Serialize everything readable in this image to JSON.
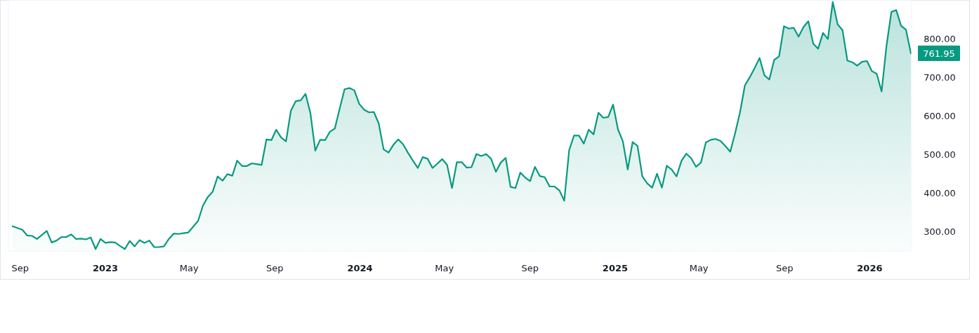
{
  "chart_data": {
    "type": "area",
    "x": [
      "2022-08-21",
      "2022-09-04",
      "2022-09-11",
      "2022-09-18",
      "2022-09-25",
      "2022-10-09",
      "2022-10-16",
      "2022-10-23",
      "2022-10-30",
      "2022-11-06",
      "2022-11-13",
      "2022-11-20",
      "2022-11-27",
      "2022-12-04",
      "2022-12-11",
      "2022-12-18",
      "2022-12-25",
      "2023-01-01",
      "2023-01-08",
      "2023-01-15",
      "2023-01-22",
      "2023-01-29",
      "2023-02-05",
      "2023-02-12",
      "2023-02-19",
      "2023-02-26",
      "2023-03-05",
      "2023-03-12",
      "2023-03-19",
      "2023-03-26",
      "2023-04-02",
      "2023-04-09",
      "2023-04-16",
      "2023-04-23",
      "2023-04-30",
      "2023-05-07",
      "2023-05-14",
      "2023-05-21",
      "2023-05-28",
      "2023-06-04",
      "2023-06-11",
      "2023-06-18",
      "2023-06-25",
      "2023-07-02",
      "2023-07-09",
      "2023-07-16",
      "2023-07-23",
      "2023-07-30",
      "2023-08-06",
      "2023-08-13",
      "2023-08-20",
      "2023-08-27",
      "2023-09-03",
      "2023-09-10",
      "2023-09-17",
      "2023-09-24",
      "2023-10-01",
      "2023-10-08",
      "2023-10-15",
      "2023-10-22",
      "2023-10-29",
      "2023-11-05",
      "2023-11-12",
      "2023-11-19",
      "2023-11-26",
      "2023-12-03",
      "2023-12-10",
      "2023-12-17",
      "2023-12-24",
      "2023-12-31",
      "2024-01-07",
      "2024-01-14",
      "2024-01-21",
      "2024-01-28",
      "2024-02-04",
      "2024-02-11",
      "2024-02-18",
      "2024-02-25",
      "2024-03-03",
      "2024-03-10",
      "2024-03-17",
      "2024-03-24",
      "2024-03-31",
      "2024-04-07",
      "2024-04-14",
      "2024-04-21",
      "2024-04-28",
      "2024-05-05",
      "2024-05-12",
      "2024-05-19",
      "2024-05-26",
      "2024-06-02",
      "2024-06-09",
      "2024-06-16",
      "2024-06-23",
      "2024-06-30",
      "2024-07-07",
      "2024-07-14",
      "2024-07-21",
      "2024-07-28",
      "2024-08-04",
      "2024-08-11",
      "2024-08-18",
      "2024-08-25",
      "2024-09-01",
      "2024-09-08",
      "2024-09-15",
      "2024-09-22",
      "2024-09-29",
      "2024-10-06",
      "2024-10-13",
      "2024-10-20",
      "2024-10-27",
      "2024-11-03",
      "2024-11-10",
      "2024-11-17",
      "2024-11-24",
      "2024-12-01",
      "2024-12-08",
      "2024-12-15",
      "2024-12-22",
      "2024-12-29",
      "2025-01-05",
      "2025-01-12",
      "2025-01-19",
      "2025-01-26",
      "2025-02-02",
      "2025-02-09",
      "2025-02-16",
      "2025-02-23",
      "2025-03-02",
      "2025-03-09",
      "2025-03-16",
      "2025-03-23",
      "2025-03-30",
      "2025-04-06",
      "2025-04-13",
      "2025-04-20",
      "2025-04-27",
      "2025-05-04",
      "2025-05-11",
      "2025-05-18",
      "2025-05-25",
      "2025-06-01",
      "2025-06-08",
      "2025-06-15",
      "2025-06-22",
      "2025-06-29",
      "2025-07-06",
      "2025-07-13",
      "2025-07-20",
      "2025-07-27",
      "2025-08-03",
      "2025-08-10",
      "2025-08-17",
      "2025-08-24",
      "2025-08-31",
      "2025-09-07",
      "2025-09-14",
      "2025-09-21",
      "2025-09-28",
      "2025-10-05",
      "2025-10-12",
      "2025-10-19",
      "2025-10-26",
      "2025-11-02",
      "2025-11-09",
      "2025-11-16",
      "2025-11-23",
      "2025-11-30",
      "2025-12-07",
      "2025-12-14",
      "2025-12-21",
      "2025-12-28",
      "2026-01-04",
      "2026-01-11",
      "2026-01-18",
      "2026-01-25",
      "2026-02-01",
      "2026-02-08",
      "2026-02-15",
      "2026-02-22",
      "2026-03-01"
    ],
    "series": [
      {
        "color": "#089981",
        "values": [
          314,
          305,
          290,
          289,
          281,
          302,
          272,
          277,
          286,
          286,
          293,
          281,
          282,
          280,
          285,
          255,
          281,
          271,
          273,
          272,
          263,
          255,
          276,
          262,
          278,
          271,
          277,
          260,
          260,
          262,
          281,
          295,
          294,
          296,
          298,
          313,
          328,
          368,
          390,
          404,
          443,
          432,
          449,
          445,
          484,
          470,
          470,
          477,
          475,
          473,
          539,
          537,
          564,
          544,
          534,
          613,
          638,
          640,
          657,
          607,
          510,
          538,
          537,
          559,
          567,
          619,
          669,
          672,
          666,
          631,
          616,
          609,
          610,
          580,
          513,
          505,
          525,
          539,
          526,
          504,
          484,
          465,
          493,
          489,
          465,
          476,
          488,
          473,
          413,
          480,
          480,
          466,
          467,
          501,
          496,
          501,
          489,
          455,
          479,
          491,
          416,
          413,
          453,
          440,
          431,
          468,
          444,
          441,
          417,
          417,
          407,
          380,
          511,
          549,
          549,
          528,
          564,
          552,
          608,
          595,
          597,
          629,
          565,
          534,
          461,
          532,
          522,
          443,
          425,
          414,
          450,
          414,
          471,
          461,
          443,
          483,
          502,
          490,
          468,
          479,
          531,
          538,
          540,
          535,
          522,
          507,
          555,
          609,
          679,
          700,
          724,
          750,
          705,
          694,
          745,
          754,
          832,
          826,
          828,
          805,
          830,
          845,
          787,
          774,
          815,
          799,
          895,
          837,
          822,
          743,
          739,
          730,
          740,
          742,
          716,
          709,
          663,
          781,
          869,
          874,
          833,
          823,
          761.95
        ]
      }
    ],
    "xlim": [
      "2022-08-15",
      "2026-03-02"
    ],
    "xticks": [
      {
        "value": "2022-09-01",
        "label": "Sep"
      },
      {
        "value": "2023-01-01",
        "label": "2023"
      },
      {
        "value": "2023-05-01",
        "label": "May"
      },
      {
        "value": "2023-09-01",
        "label": "Sep"
      },
      {
        "value": "2024-01-01",
        "label": "2024"
      },
      {
        "value": "2024-05-01",
        "label": "May"
      },
      {
        "value": "2024-09-01",
        "label": "Sep"
      },
      {
        "value": "2025-01-01",
        "label": "2025"
      },
      {
        "value": "2025-05-01",
        "label": "May"
      },
      {
        "value": "2025-09-01",
        "label": "Sep"
      },
      {
        "value": "2026-01-01",
        "label": "2026"
      }
    ],
    "ylim": [
      250,
      900
    ],
    "yticks": [
      {
        "value": 300,
        "label": "300.00"
      },
      {
        "value": 400,
        "label": "400.00"
      },
      {
        "value": 500,
        "label": "500.00"
      },
      {
        "value": 600,
        "label": "600.00"
      },
      {
        "value": 700,
        "label": "700.00"
      },
      {
        "value": 800,
        "label": "800.00"
      }
    ],
    "annotations": [
      {
        "text": "761.95",
        "x": "2026-03-01",
        "y": 761.95
      }
    ],
    "grid": false
  }
}
